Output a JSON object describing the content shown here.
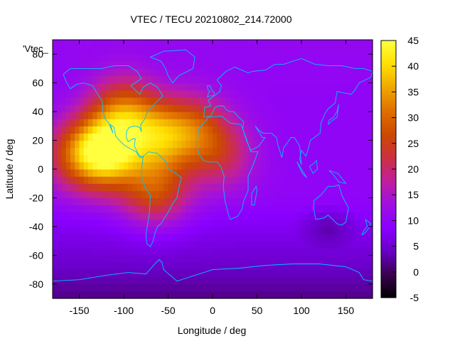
{
  "chart_data": {
    "type": "heatmap",
    "title": "VTEC / TECU 20210802_214.72000",
    "xlabel": "Longitude / deg",
    "ylabel": "Latitude / deg",
    "key_label": "'Vtec_",
    "xlim": [
      -180,
      180
    ],
    "ylim": [
      -90,
      90
    ],
    "x_ticks": [
      -150,
      -100,
      -50,
      0,
      50,
      100,
      150
    ],
    "y_ticks": [
      -80,
      -60,
      -40,
      -20,
      0,
      20,
      40,
      60,
      80
    ],
    "colorbar": {
      "min": -5,
      "max": 45,
      "ticks": [
        -5,
        0,
        5,
        10,
        15,
        20,
        25,
        30,
        35,
        40,
        45
      ],
      "palette": [
        "#000000",
        "#3a0050",
        "#6a00c8",
        "#8a00ff",
        "#a010e0",
        "#c0209a",
        "#cc3040",
        "#cc4a00",
        "#e07000",
        "#f0a800",
        "#ffe000",
        "#ffff40"
      ]
    },
    "grid": false,
    "legend": "top-left",
    "field_sources": [
      {
        "lon": -120,
        "lat": 12,
        "peak": 42
      },
      {
        "lon": -60,
        "lat": 22,
        "peak": 30
      },
      {
        "lon": -100,
        "lat": 40,
        "peak": 28
      },
      {
        "lon": -65,
        "lat": -15,
        "peak": 26
      },
      {
        "lon": -20,
        "lat": 28,
        "peak": 24
      },
      {
        "lon": 10,
        "lat": 10,
        "peak": 20
      },
      {
        "lon": -155,
        "lat": 10,
        "peak": 22
      }
    ],
    "background_value": 10,
    "coastline_color": "#00c0ff"
  }
}
